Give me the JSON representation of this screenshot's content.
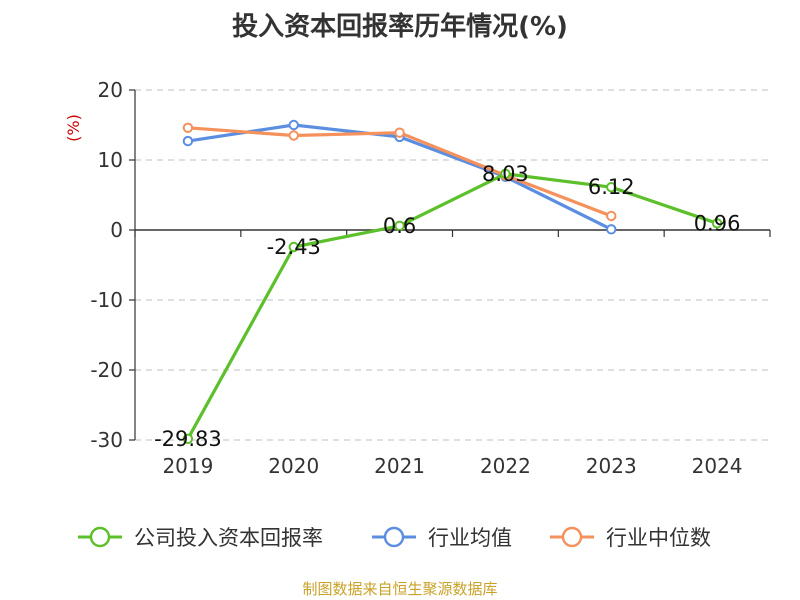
{
  "title": "投入资本回报率历年情况(%)",
  "source": "制图数据来自恒生聚源数据库",
  "chart_data": {
    "type": "line",
    "title": "投入资本回报率历年情况(%)",
    "ylabel": "(%)",
    "xlabel": "",
    "categories": [
      "2019",
      "2020",
      "2021",
      "2022",
      "2023",
      "2024"
    ],
    "ylim": [
      -30,
      20
    ],
    "yticks": [
      20,
      10,
      0,
      -10,
      -20,
      -30
    ],
    "grid": true,
    "legend_position": "bottom",
    "series": [
      {
        "name": "公司投入资本回报率",
        "color": "#5cc02a",
        "values": [
          -29.83,
          -2.43,
          0.6,
          8.03,
          6.12,
          0.96
        ],
        "labels": [
          "-29.83",
          "-2.43",
          "0.6",
          "8.03",
          "6.12",
          "0.96"
        ]
      },
      {
        "name": "行业均值",
        "color": "#5b8ee0",
        "values": [
          12.7,
          15.0,
          13.3,
          7.6,
          0.1,
          null
        ]
      },
      {
        "name": "行业中位数",
        "color": "#f5915a",
        "values": [
          14.6,
          13.5,
          13.9,
          7.8,
          2.0,
          null
        ]
      }
    ]
  }
}
